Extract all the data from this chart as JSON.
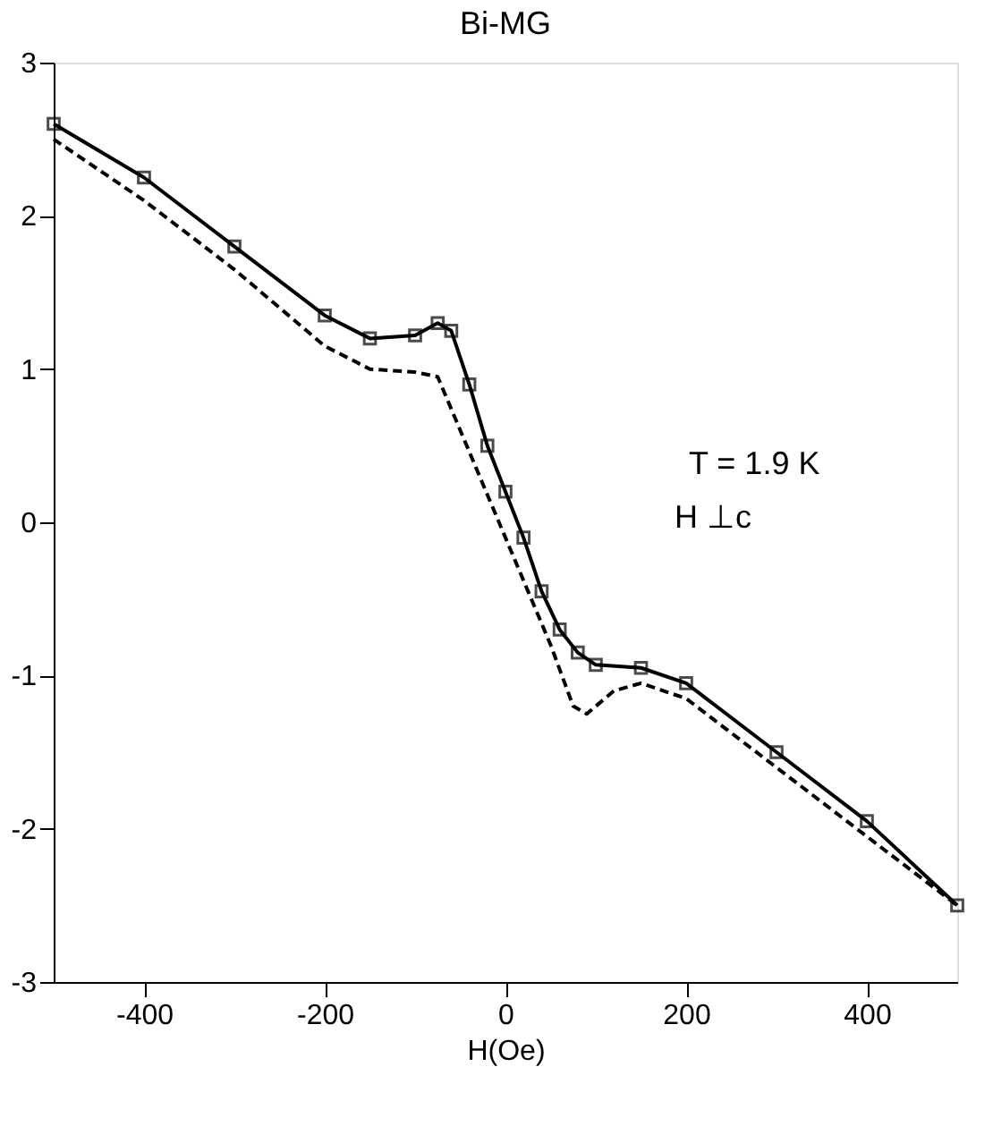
{
  "chart_data": {
    "type": "line",
    "title": "Bi-MG",
    "xlabel": "H(Oe)",
    "xlim": [
      -500,
      500
    ],
    "xticks": [
      -400,
      -200,
      0,
      200,
      400
    ],
    "ylim": [
      -3,
      3
    ],
    "yticks": [
      -3,
      -2,
      -1,
      0,
      1,
      2,
      3
    ],
    "grid": false,
    "annotations": [
      "T = 1.9 K",
      "H ⊥c"
    ],
    "series": [
      {
        "color": "#000000",
        "marker": "square",
        "line_style": "solid",
        "x": [
          -500,
          -400,
          -300,
          -200,
          -150,
          -100,
          -75,
          -60,
          -40,
          -20,
          0,
          20,
          40,
          60,
          80,
          100,
          150,
          200,
          300,
          400,
          500
        ],
        "values": [
          2.6,
          2.25,
          1.8,
          1.35,
          1.2,
          1.22,
          1.3,
          1.25,
          0.9,
          0.5,
          0.2,
          -0.1,
          -0.45,
          -0.7,
          -0.85,
          -0.93,
          -0.95,
          -1.05,
          -1.5,
          -1.95,
          -2.5
        ]
      },
      {
        "color": "#000000",
        "marker": "none",
        "line_style": "dashed",
        "x": [
          -500,
          -400,
          -300,
          -200,
          -150,
          -100,
          -75,
          -50,
          -25,
          0,
          25,
          50,
          75,
          90,
          120,
          150,
          200,
          300,
          400,
          500
        ],
        "values": [
          2.5,
          2.1,
          1.65,
          1.15,
          1.0,
          0.98,
          0.95,
          0.6,
          0.25,
          -0.1,
          -0.45,
          -0.8,
          -1.2,
          -1.25,
          -1.1,
          -1.05,
          -1.15,
          -1.6,
          -2.05,
          -2.5
        ]
      }
    ]
  }
}
